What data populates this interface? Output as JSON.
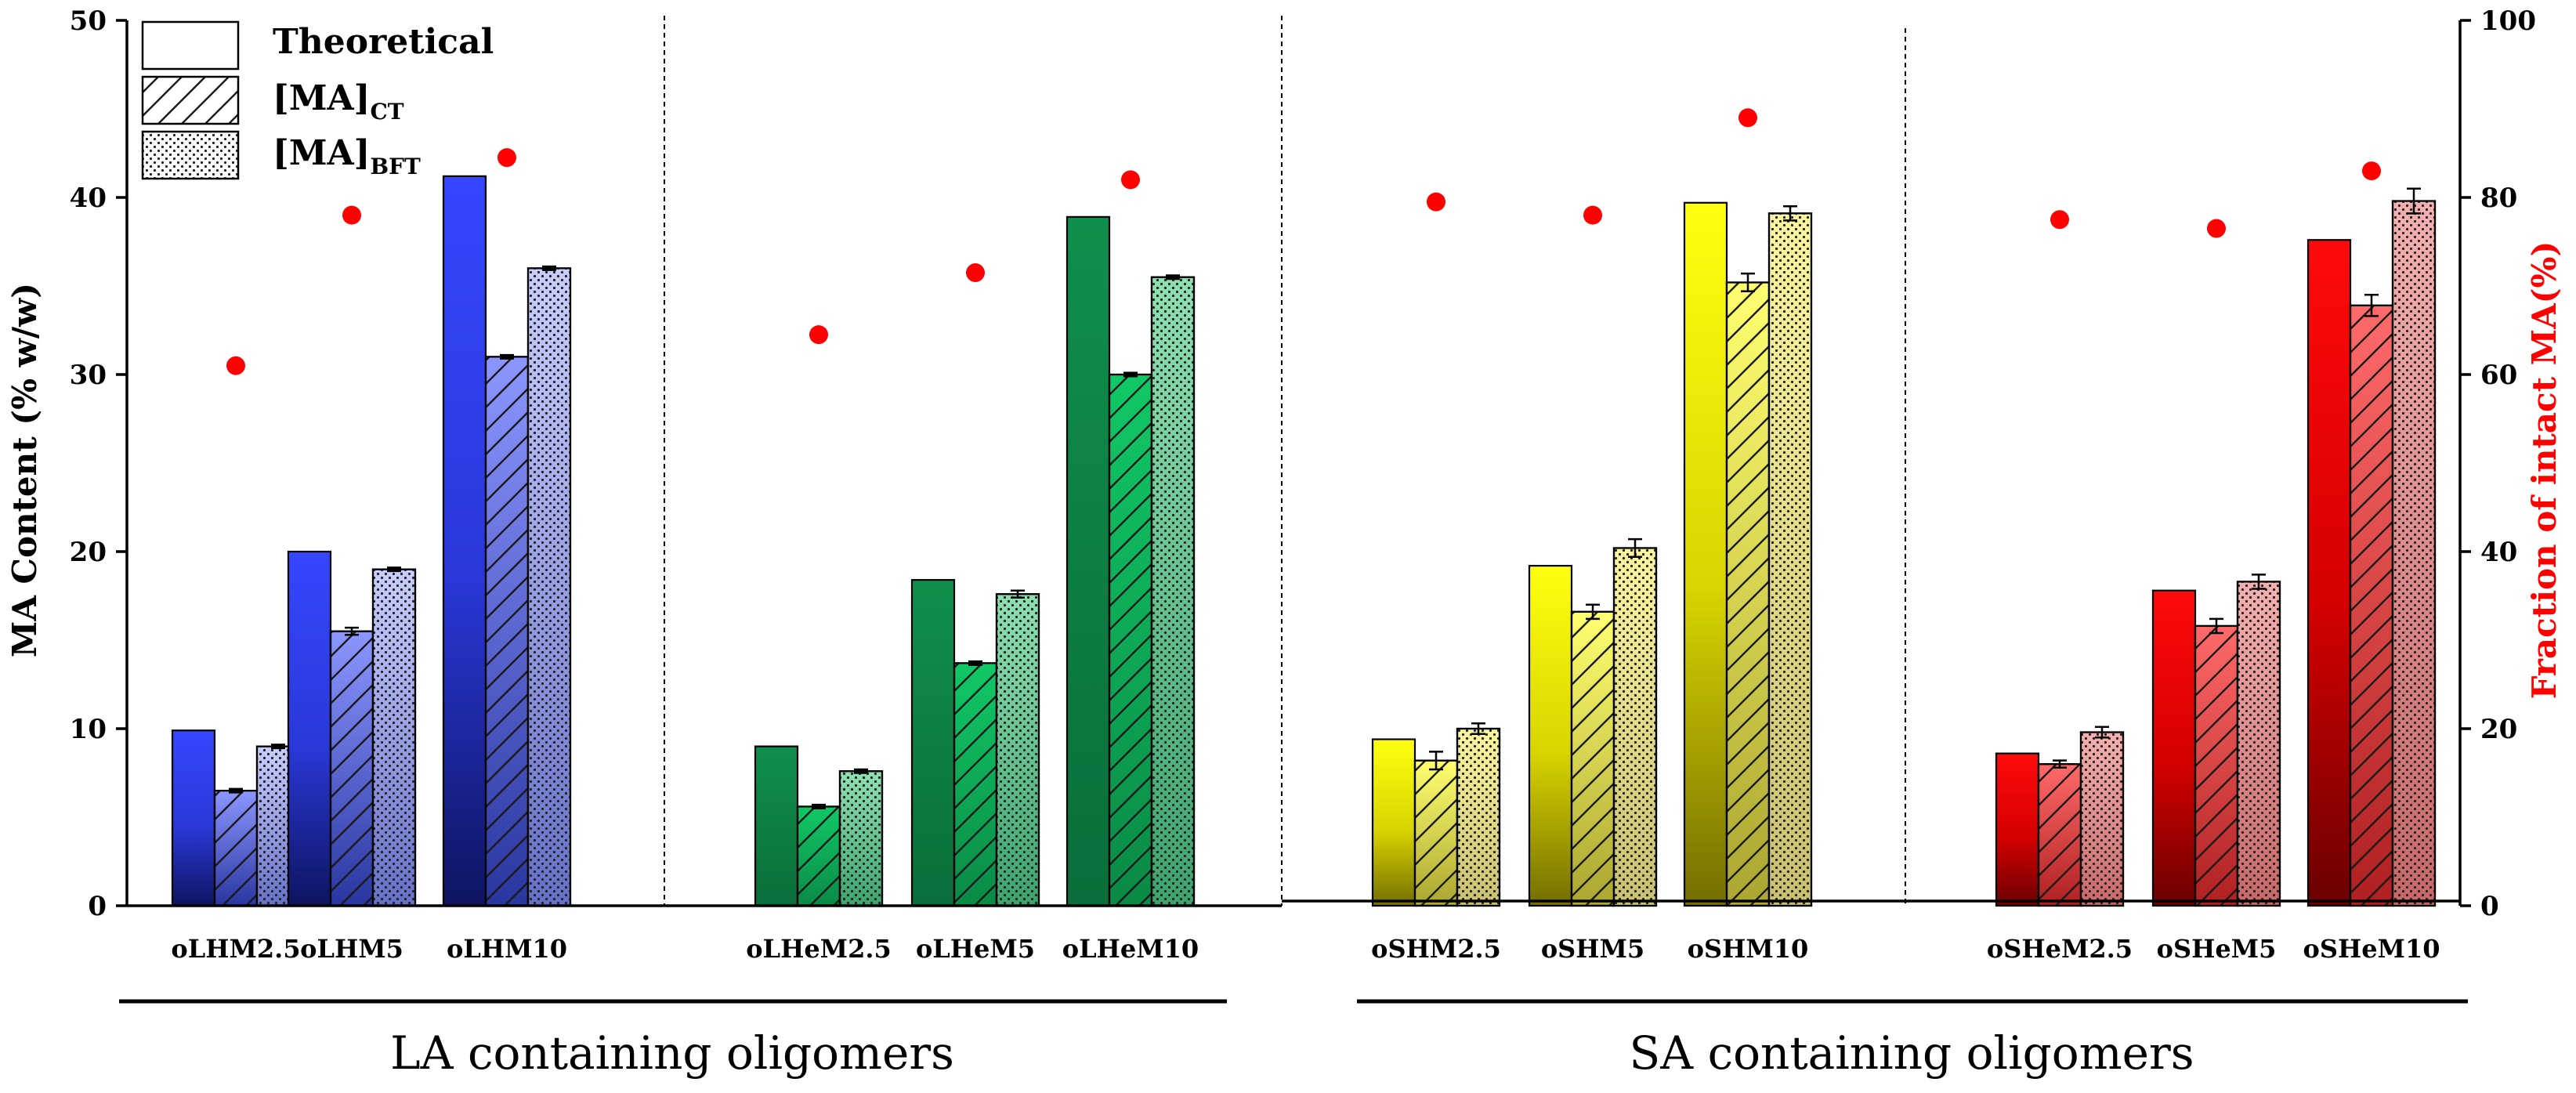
{
  "chart_data": {
    "type": "bar",
    "categories": [
      "oLHM2.5",
      "oLHM5",
      "oLHM10",
      "oLHeM2.5",
      "oLHeM5",
      "oLHeM10",
      "oSHM2.5",
      "oSHM5",
      "oSHM10",
      "oSHeM2.5",
      "oSHeM5",
      "oSHeM10"
    ],
    "series": [
      {
        "name": "Theoretical",
        "values": [
          9.9,
          20.0,
          41.2,
          9.0,
          18.4,
          38.9,
          9.4,
          19.2,
          39.7,
          8.6,
          17.8,
          37.6
        ]
      },
      {
        "name": "[MA]CT",
        "values": [
          6.5,
          15.5,
          31.0,
          5.6,
          13.7,
          30.0,
          8.2,
          16.6,
          35.2,
          8.0,
          15.8,
          33.9
        ]
      },
      {
        "name": "[MA]BFT",
        "values": [
          9.0,
          19.0,
          36.0,
          7.6,
          17.6,
          35.5,
          10.0,
          20.2,
          39.1,
          9.8,
          18.3,
          39.8
        ]
      }
    ],
    "ct_error": [
      0.1,
      0.2,
      0.1,
      0.1,
      0.1,
      0.1,
      0.5,
      0.4,
      0.5,
      0.2,
      0.4,
      0.6
    ],
    "bft_error": [
      0.1,
      0.1,
      0.1,
      0.1,
      0.2,
      0.1,
      0.3,
      0.5,
      0.4,
      0.3,
      0.4,
      0.7
    ],
    "fraction_intact": {
      "name": "Fraction of intact MA(%)",
      "values": [
        61,
        78,
        84.5,
        64.5,
        71.5,
        82,
        79.5,
        78,
        89,
        77.5,
        76.5,
        83
      ]
    },
    "xlabel": "",
    "ylabel": "MA Content (% w/w)",
    "ylim": [
      0,
      50
    ],
    "yticks": [
      "0",
      "10",
      "20",
      "30",
      "40",
      "50"
    ],
    "ylabel_right": "Fraction of intact MA(%)",
    "ylim_right": [
      0,
      100
    ],
    "yticks_right": [
      "0",
      "20",
      "40",
      "60",
      "80",
      "100"
    ],
    "legend": {
      "position": "top-left",
      "entries": [
        {
          "label": "Theoretical",
          "sub": ""
        },
        {
          "label": "[MA]",
          "sub": "CT"
        },
        {
          "label": "[MA]",
          "sub": "BFT"
        }
      ]
    },
    "groups": [
      {
        "label": "LA containing oligomers"
      },
      {
        "label": "SA containing oligomers"
      }
    ],
    "colors": {
      "blue": "#2c3cf0",
      "green": "#0d8a48",
      "yellow": "#f6f200",
      "red": "#ee0000",
      "dot": "#ff0000",
      "right_axis_label": "#ff0000"
    }
  }
}
